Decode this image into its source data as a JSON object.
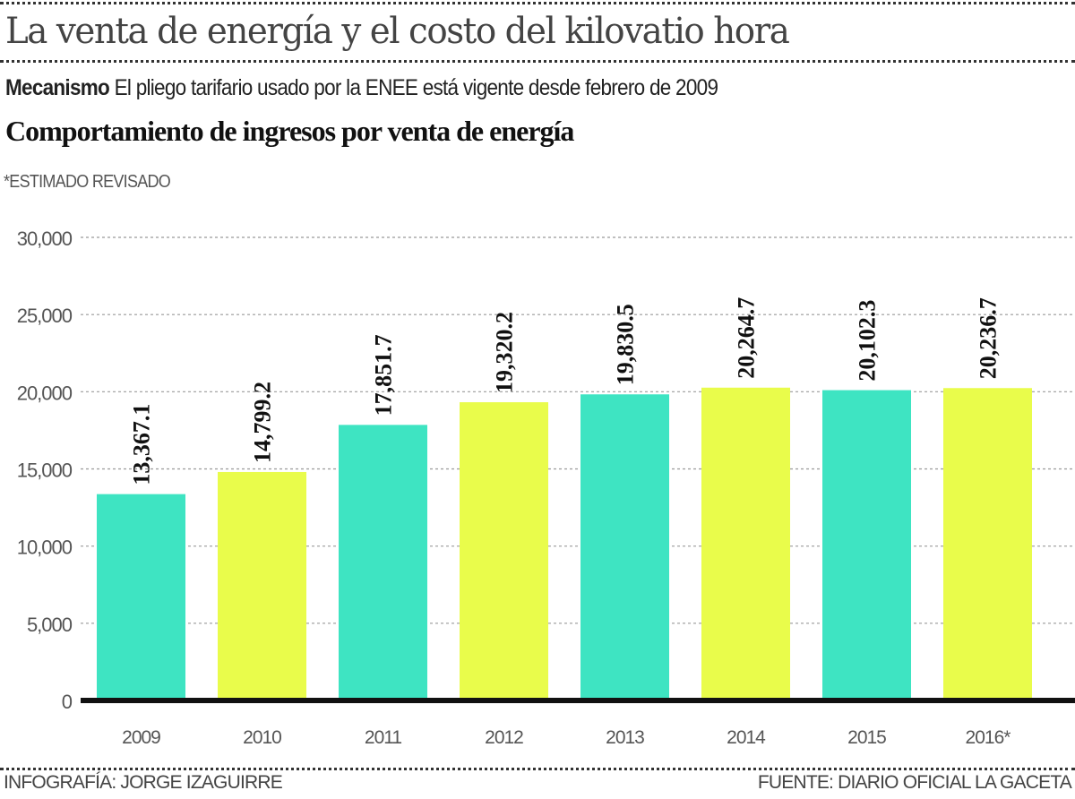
{
  "header": {
    "title": "La venta de energía y el costo del kilovatio hora",
    "subtitle_bold": "Mecanismo",
    "subtitle": "El pliego tarifario usado por la ENEE está vigente desde febrero de 2009",
    "note": "*ESTIMADO REVISADO"
  },
  "chart_data": {
    "type": "bar",
    "title": "Comportamiento de ingresos por venta de energía",
    "xlabel": "",
    "ylabel": "",
    "categories": [
      "2009",
      "2010",
      "2011",
      "2012",
      "2013",
      "2014",
      "2015",
      "2016*"
    ],
    "values": [
      13367.1,
      14799.2,
      17851.7,
      19320.2,
      19830.5,
      20264.7,
      20102.3,
      20236.7
    ],
    "data_labels": [
      "13,367.1",
      "14,799.2",
      "17,851.7",
      "19,320.2",
      "19,830.5",
      "20,264.7",
      "20,102.3",
      "20,236.7"
    ],
    "ylim": [
      0,
      30000
    ],
    "yticks": [
      0,
      5000,
      10000,
      15000,
      20000,
      25000,
      30000
    ],
    "ytick_labels": [
      "0",
      "5,000",
      "10,000",
      "15,000",
      "20,000",
      "25,000",
      "30,000"
    ],
    "grid": true,
    "colors": [
      "#3ee4c2",
      "#e9fc4b"
    ]
  },
  "footer": {
    "credit": "INFOGRAFÍA: JORGE IZAGUIRRE",
    "source": "FUENTE: DIARIO OFICIAL LA GACETA"
  }
}
